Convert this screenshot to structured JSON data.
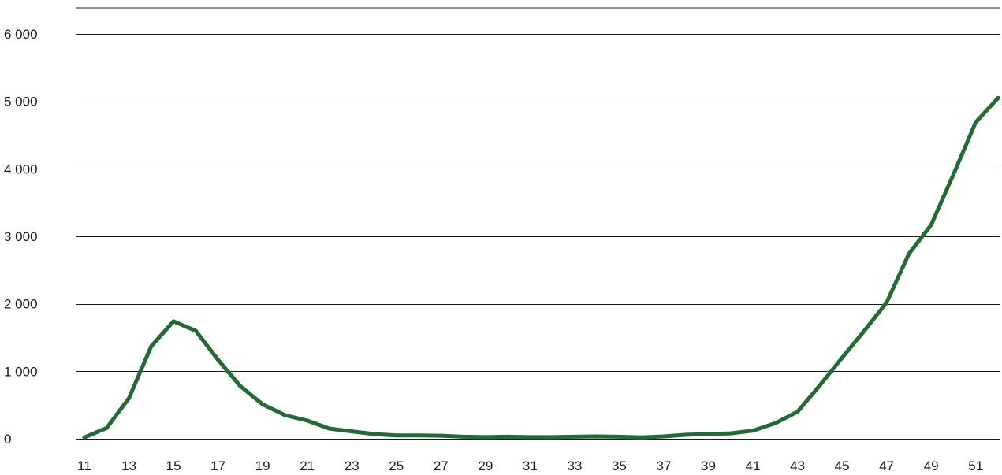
{
  "chart_data": {
    "type": "line",
    "title": "",
    "xlabel": "",
    "ylabel": "",
    "ylim": [
      0,
      6000
    ],
    "xlim": [
      11,
      52
    ],
    "y_ticks": [
      0,
      1000,
      2000,
      3000,
      4000,
      5000,
      6000
    ],
    "y_tick_labels": [
      "0",
      "1 000",
      "2 000",
      "3 000",
      "4 000",
      "5 000",
      "6 000"
    ],
    "x_ticks": [
      11,
      13,
      15,
      17,
      19,
      21,
      23,
      25,
      27,
      29,
      31,
      33,
      35,
      37,
      39,
      41,
      43,
      45,
      47,
      49,
      51
    ],
    "x_tick_labels": [
      "11",
      "13",
      "15",
      "17",
      "19",
      "21",
      "23",
      "25",
      "27",
      "29",
      "31",
      "33",
      "35",
      "37",
      "39",
      "41",
      "43",
      "45",
      "47",
      "49",
      "51"
    ],
    "grid": "horizontal",
    "line_color": "#236b35",
    "grid_color": "#1a1a1a",
    "x": [
      11,
      12,
      13,
      14,
      15,
      16,
      17,
      18,
      19,
      20,
      21,
      22,
      23,
      24,
      25,
      26,
      27,
      28,
      29,
      30,
      31,
      32,
      33,
      34,
      35,
      36,
      37,
      38,
      39,
      40,
      41,
      42,
      43,
      44,
      45,
      46,
      47,
      48,
      49,
      50,
      51,
      52
    ],
    "series": [
      {
        "values": [
          20,
          160,
          600,
          1370,
          1740,
          1600,
          1170,
          780,
          510,
          350,
          270,
          150,
          110,
          70,
          50,
          50,
          45,
          30,
          25,
          30,
          25,
          25,
          30,
          35,
          30,
          20,
          35,
          60,
          70,
          80,
          120,
          230,
          400,
          790,
          1200,
          1600,
          2020,
          2740,
          3170,
          3920,
          4690,
          5050
        ]
      }
    ]
  }
}
